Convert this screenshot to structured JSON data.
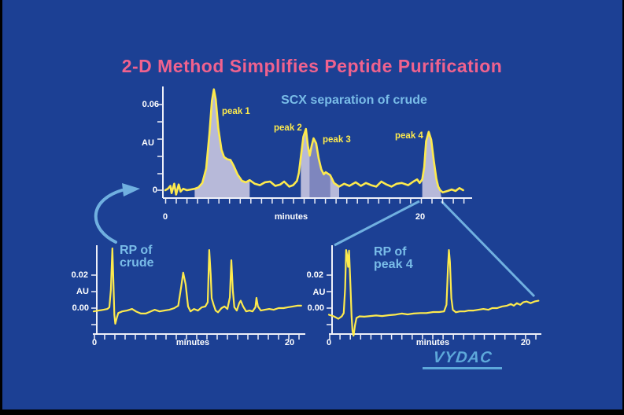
{
  "slide": {
    "title": "2-D Method Simplifies Peptide Purification",
    "logo_text": "VYDAC"
  },
  "colors": {
    "background": "#1c4094",
    "border": "#000000",
    "title_pink": "#f0628e",
    "accent_blue": "#79bce8",
    "trace_yellow": "#fdea4d",
    "fill_lavender": "#b7b9d9",
    "fill_purple": "#7e86be",
    "axis_white": "#eef0f8",
    "connector_blue": "#70b0e0",
    "logo_blue": "#5da8da"
  },
  "chart_data": [
    {
      "type": "line",
      "title": "SCX separation of crude",
      "xlabel": "minutes",
      "ylabel": "AU",
      "x_tick_labels": [
        "0",
        "20"
      ],
      "y_tick_labels": [
        "0.06",
        "AU",
        "0"
      ],
      "xlim": [
        0,
        23.3
      ],
      "ylim_shown": [
        0,
        0.06
      ],
      "grid": false,
      "annotations": [
        {
          "label": "peak 1",
          "apex_min": 3.8,
          "apex_au": 0.07
        },
        {
          "label": "peak 2",
          "apex_min": 11.0,
          "apex_au": 0.0425
        },
        {
          "label": "peak 3",
          "apex_min": 11.6,
          "apex_au": 0.036
        },
        {
          "label": "peak 4",
          "apex_min": 20.6,
          "apex_au": 0.0405
        }
      ],
      "collected_fractions": [
        {
          "start_min": 2.3,
          "end_min": 6.6,
          "color": "lavender"
        },
        {
          "start_min": 10.6,
          "end_min": 11.3,
          "color": "lavender"
        },
        {
          "start_min": 11.3,
          "end_min": 12.9,
          "color": "purple"
        },
        {
          "start_min": 12.9,
          "end_min": 13.6,
          "color": "lavender"
        },
        {
          "start_min": 20.1,
          "end_min": 21.6,
          "color": "lavender"
        }
      ],
      "series": [
        {
          "name": "SCX chromatogram of crude",
          "points": [
            [
              0,
              0
            ],
            [
              0.2,
              0.001
            ],
            [
              0.4,
              0.003
            ],
            [
              0.5,
              -0.002
            ],
            [
              0.7,
              0.0045
            ],
            [
              0.85,
              -0.003
            ],
            [
              1.05,
              0.004
            ],
            [
              1.2,
              -0.001
            ],
            [
              1.4,
              0.001
            ],
            [
              1.7,
              0
            ],
            [
              2.0,
              0.0005
            ],
            [
              2.3,
              0.001
            ],
            [
              2.6,
              0.002
            ],
            [
              2.9,
              0.005
            ],
            [
              3.2,
              0.015
            ],
            [
              3.45,
              0.039
            ],
            [
              3.65,
              0.062
            ],
            [
              3.8,
              0.07
            ],
            [
              3.95,
              0.063
            ],
            [
              4.15,
              0.043
            ],
            [
              4.4,
              0.028
            ],
            [
              4.6,
              0.023
            ],
            [
              4.85,
              0.0215
            ],
            [
              5.1,
              0.021
            ],
            [
              5.35,
              0.017
            ],
            [
              5.65,
              0.011
            ],
            [
              6.0,
              0.0065
            ],
            [
              6.3,
              0.0055
            ],
            [
              6.6,
              0.007
            ],
            [
              7.0,
              0.0045
            ],
            [
              7.4,
              0.0035
            ],
            [
              7.8,
              0.0055
            ],
            [
              8.2,
              0.006
            ],
            [
              8.6,
              0.003
            ],
            [
              9.0,
              0.004
            ],
            [
              9.3,
              0.006
            ],
            [
              9.7,
              0.0025
            ],
            [
              10.0,
              0.0035
            ],
            [
              10.3,
              0.0065
            ],
            [
              10.45,
              0.012
            ],
            [
              10.6,
              0.023
            ],
            [
              10.8,
              0.037
            ],
            [
              11.0,
              0.0425
            ],
            [
              11.15,
              0.031
            ],
            [
              11.3,
              0.024
            ],
            [
              11.45,
              0.031
            ],
            [
              11.6,
              0.036
            ],
            [
              11.8,
              0.0325
            ],
            [
              12.0,
              0.022
            ],
            [
              12.2,
              0.0145
            ],
            [
              12.4,
              0.011
            ],
            [
              12.55,
              0.0125
            ],
            [
              12.9,
              0.0105
            ],
            [
              13.2,
              0.005
            ],
            [
              13.6,
              0.0025
            ],
            [
              14.0,
              0.0045
            ],
            [
              14.4,
              0.003
            ],
            [
              14.9,
              0.0055
            ],
            [
              15.3,
              0.003
            ],
            [
              15.7,
              0.005
            ],
            [
              16.1,
              0.0035
            ],
            [
              16.5,
              0.0025
            ],
            [
              16.9,
              0.006
            ],
            [
              17.3,
              0.004
            ],
            [
              17.7,
              0.0025
            ],
            [
              18.1,
              0.0045
            ],
            [
              18.5,
              0.005
            ],
            [
              19.0,
              0.0035
            ],
            [
              19.4,
              0.006
            ],
            [
              19.7,
              0.0075
            ],
            [
              19.9,
              0.005
            ],
            [
              20.1,
              0.0075
            ],
            [
              20.25,
              0.016
            ],
            [
              20.4,
              0.034
            ],
            [
              20.6,
              0.0405
            ],
            [
              20.8,
              0.035
            ],
            [
              21.0,
              0.0205
            ],
            [
              21.2,
              0.008
            ],
            [
              21.35,
              0.0025
            ],
            [
              21.5,
              0
            ],
            [
              21.7,
              -0.0015
            ],
            [
              22.1,
              -0.0005
            ],
            [
              22.4,
              0.0005
            ],
            [
              22.7,
              -0.0005
            ],
            [
              23.0,
              0.0015
            ],
            [
              23.3,
              0
            ]
          ]
        }
      ]
    },
    {
      "type": "line",
      "title_lines": [
        "RP of",
        "crude"
      ],
      "xlabel": "minutes",
      "ylabel": "AU",
      "x_tick_labels": [
        "0",
        "20"
      ],
      "y_tick_labels": [
        "0.02",
        "AU",
        "0.00"
      ],
      "xlim": [
        0,
        21.1
      ],
      "ylim_shown": [
        -0.01,
        0.02
      ],
      "grid": false,
      "series": [
        {
          "name": "RP chromatogram of crude",
          "points": [
            [
              0,
              -0.002
            ],
            [
              0.5,
              -0.0015
            ],
            [
              1.0,
              -0.001
            ],
            [
              1.4,
              -0.0005
            ],
            [
              1.6,
              0.0005
            ],
            [
              1.75,
              0.011
            ],
            [
              1.9,
              0.0362
            ],
            [
              2.0,
              0.018
            ],
            [
              2.1,
              -0.004
            ],
            [
              2.2,
              -0.0095
            ],
            [
              2.35,
              -0.006
            ],
            [
              2.5,
              -0.003
            ],
            [
              2.9,
              -0.002
            ],
            [
              3.4,
              -0.0015
            ],
            [
              3.9,
              -0.0005
            ],
            [
              4.3,
              -0.002
            ],
            [
              4.8,
              -0.0033
            ],
            [
              5.3,
              -0.0033
            ],
            [
              5.8,
              -0.002
            ],
            [
              6.2,
              -0.001
            ],
            [
              6.7,
              -0.002
            ],
            [
              7.2,
              -0.0015
            ],
            [
              7.7,
              -0.001
            ],
            [
              8.2,
              0
            ],
            [
              8.6,
              0.0015
            ],
            [
              8.9,
              0.013
            ],
            [
              9.1,
              0.0215
            ],
            [
              9.35,
              0.0145
            ],
            [
              9.6,
              0.001
            ],
            [
              9.85,
              -0.002
            ],
            [
              10.2,
              -0.0005
            ],
            [
              10.6,
              -0.0015
            ],
            [
              11.0,
              0.0005
            ],
            [
              11.35,
              0.001
            ],
            [
              11.6,
              0.0035
            ],
            [
              11.75,
              0.0352
            ],
            [
              11.9,
              0.02
            ],
            [
              12.0,
              0.006
            ],
            [
              12.2,
              0.002
            ],
            [
              12.4,
              -0.0015
            ],
            [
              12.65,
              -0.0025
            ],
            [
              13.0,
              0
            ],
            [
              13.3,
              0.001
            ],
            [
              13.6,
              -0.0005
            ],
            [
              13.85,
              0.0065
            ],
            [
              14.0,
              0.029
            ],
            [
              14.15,
              0.0105
            ],
            [
              14.3,
              0.0005
            ],
            [
              14.55,
              -0.0015
            ],
            [
              14.8,
              0.003
            ],
            [
              14.95,
              0.0045
            ],
            [
              15.2,
              0.001
            ],
            [
              15.5,
              -0.002
            ],
            [
              15.85,
              -0.0015
            ],
            [
              16.15,
              -0.002
            ],
            [
              16.45,
              0.0005
            ],
            [
              16.55,
              0.0062
            ],
            [
              16.7,
              0.001
            ],
            [
              17.0,
              -0.0015
            ],
            [
              17.4,
              -0.001
            ],
            [
              17.85,
              -0.0005
            ],
            [
              18.3,
              -0.001
            ],
            [
              18.8,
              0
            ],
            [
              19.3,
              0
            ],
            [
              19.75,
              0.0005
            ],
            [
              20.25,
              0.001
            ],
            [
              20.7,
              0.0015
            ],
            [
              21.1,
              0.0015
            ]
          ]
        }
      ]
    },
    {
      "type": "line",
      "title_lines": [
        "RP of",
        "peak 4"
      ],
      "xlabel": "minutes",
      "ylabel": "AU",
      "x_tick_labels": [
        "0",
        "20"
      ],
      "y_tick_labels": [
        "0.02",
        "AU",
        "0.00"
      ],
      "xlim": [
        0,
        21.3
      ],
      "ylim_shown": [
        -0.01,
        0.02
      ],
      "grid": false,
      "series": [
        {
          "name": "RP chromatogram of collected peak 4",
          "points": [
            [
              0,
              -0.004
            ],
            [
              0.5,
              -0.005
            ],
            [
              0.95,
              -0.0065
            ],
            [
              1.3,
              -0.005
            ],
            [
              1.5,
              -0.003
            ],
            [
              1.65,
              0.012
            ],
            [
              1.75,
              0.0352
            ],
            [
              1.85,
              0.032
            ],
            [
              1.95,
              0.025
            ],
            [
              2.05,
              0.0348
            ],
            [
              2.2,
              0.012
            ],
            [
              2.3,
              -0.005
            ],
            [
              2.4,
              -0.014
            ],
            [
              2.5,
              -0.0167
            ],
            [
              2.65,
              -0.0105
            ],
            [
              2.8,
              -0.006
            ],
            [
              3.1,
              -0.005
            ],
            [
              3.6,
              -0.0052
            ],
            [
              4.2,
              -0.0048
            ],
            [
              4.8,
              -0.0045
            ],
            [
              5.4,
              -0.0048
            ],
            [
              6.1,
              -0.0043
            ],
            [
              6.7,
              -0.004
            ],
            [
              7.4,
              -0.0033
            ],
            [
              8.0,
              -0.0038
            ],
            [
              8.6,
              -0.0033
            ],
            [
              9.3,
              -0.003
            ],
            [
              9.9,
              -0.003
            ],
            [
              10.6,
              -0.0024
            ],
            [
              11.2,
              -0.0024
            ],
            [
              11.7,
              -0.002
            ],
            [
              11.95,
              0.002
            ],
            [
              12.1,
              0.0248
            ],
            [
              12.2,
              0.0352
            ],
            [
              12.3,
              0.028
            ],
            [
              12.45,
              0.006
            ],
            [
              12.6,
              -0.001
            ],
            [
              12.9,
              -0.0025
            ],
            [
              13.3,
              -0.002
            ],
            [
              13.8,
              -0.002
            ],
            [
              14.2,
              -0.0015
            ],
            [
              14.7,
              -0.0015
            ],
            [
              15.2,
              -0.001
            ],
            [
              15.7,
              -0.0005
            ],
            [
              16.2,
              -0.001
            ],
            [
              16.6,
              0
            ],
            [
              17.1,
              0
            ],
            [
              17.6,
              0.001
            ],
            [
              18.1,
              0.0015
            ],
            [
              18.5,
              0.0025
            ],
            [
              18.8,
              0.0015
            ],
            [
              19.1,
              0.003
            ],
            [
              19.45,
              0.002
            ],
            [
              19.75,
              0.0035
            ],
            [
              20.1,
              0.004
            ],
            [
              20.5,
              0.003
            ],
            [
              20.9,
              0.004
            ],
            [
              21.3,
              0.0045
            ]
          ]
        }
      ]
    }
  ]
}
